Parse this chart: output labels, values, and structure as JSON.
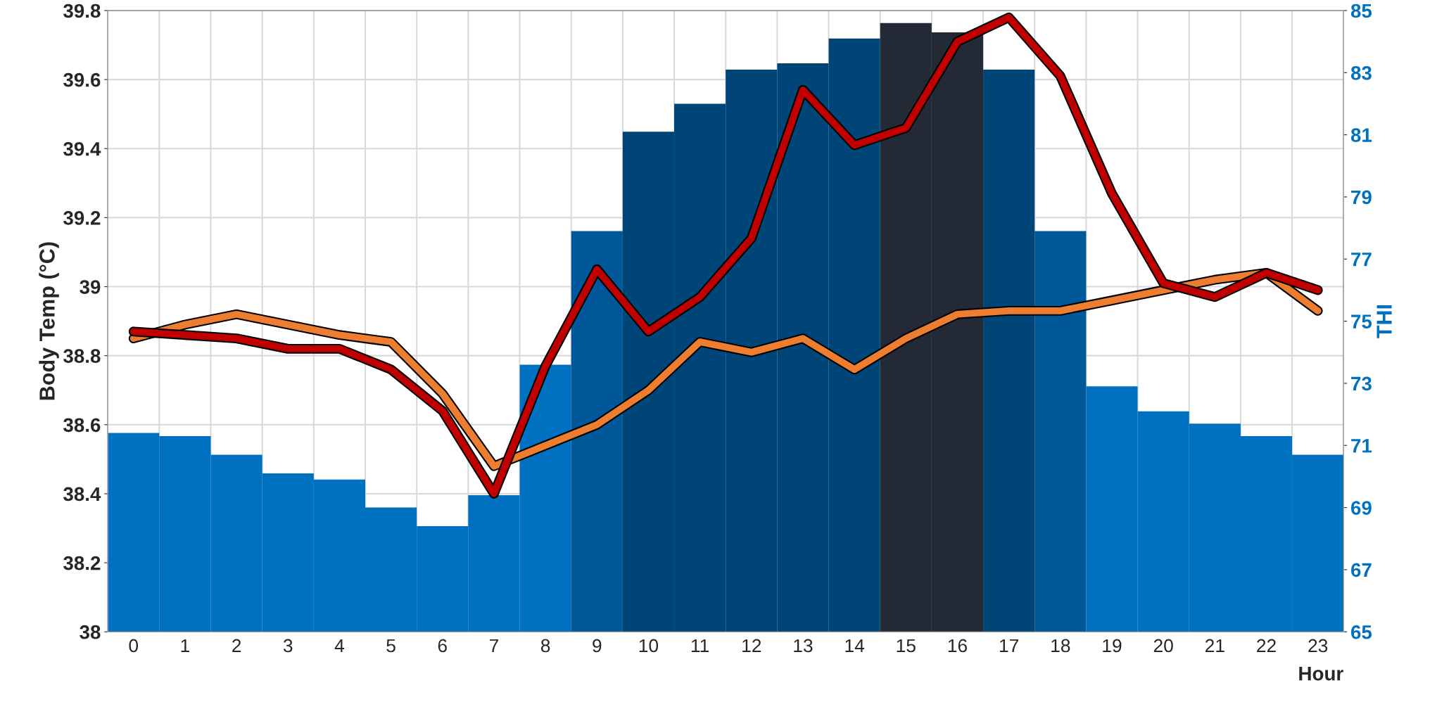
{
  "chart_data": {
    "type": "bar",
    "xlabel": "Hour",
    "ylabel": "Body Temp (°C)",
    "y2label": "THI",
    "categories": [
      "0",
      "1",
      "2",
      "3",
      "4",
      "5",
      "6",
      "7",
      "8",
      "9",
      "10",
      "11",
      "12",
      "13",
      "14",
      "15",
      "16",
      "17",
      "18",
      "19",
      "20",
      "21",
      "22",
      "23"
    ],
    "ylim": [
      38,
      39.8
    ],
    "yticks": [
      38,
      38.2,
      38.4,
      38.6,
      38.8,
      39,
      39.2,
      39.4,
      39.6,
      39.8
    ],
    "y2lim": [
      65,
      85
    ],
    "y2ticks": [
      65,
      67,
      69,
      71,
      73,
      75,
      77,
      79,
      81,
      83,
      85
    ],
    "grid": true,
    "legend": false,
    "series": [
      {
        "axis": "y2",
        "values": [
          71.4,
          71.3,
          70.7,
          70.1,
          69.9,
          69.0,
          68.4,
          69.4,
          73.6,
          77.9,
          81.1,
          82.0,
          83.1,
          83.3,
          84.1,
          84.6,
          84.3,
          83.1,
          77.9,
          72.9,
          72.1,
          71.7,
          71.3,
          70.7
        ],
        "colors": [
          "#0070c0",
          "#0070c0",
          "#0070c0",
          "#0070c0",
          "#0070c0",
          "#0070c0",
          "#0070c0",
          "#0070c0",
          "#0070c0",
          "#00579a",
          "#004578",
          "#004578",
          "#004578",
          "#004578",
          "#004578",
          "#232a36",
          "#232a36",
          "#004578",
          "#00579a",
          "#0070c0",
          "#0070c0",
          "#0070c0",
          "#0070c0",
          "#0070c0"
        ]
      },
      {
        "type": "line",
        "color": "#ed7d31",
        "values": [
          38.85,
          38.89,
          38.92,
          38.89,
          38.86,
          38.84,
          38.69,
          38.48,
          38.54,
          38.6,
          38.7,
          38.84,
          38.81,
          38.85,
          38.76,
          38.85,
          38.92,
          38.93,
          38.93,
          38.96,
          38.99,
          39.02,
          39.04,
          38.93
        ]
      },
      {
        "type": "line",
        "color": "#c00000",
        "values": [
          38.87,
          38.86,
          38.85,
          38.82,
          38.82,
          38.76,
          38.64,
          38.4,
          38.77,
          39.05,
          38.87,
          38.97,
          39.14,
          39.57,
          39.41,
          39.46,
          39.71,
          39.78,
          39.61,
          39.27,
          39.01,
          38.97,
          39.04,
          38.99
        ]
      }
    ]
  }
}
